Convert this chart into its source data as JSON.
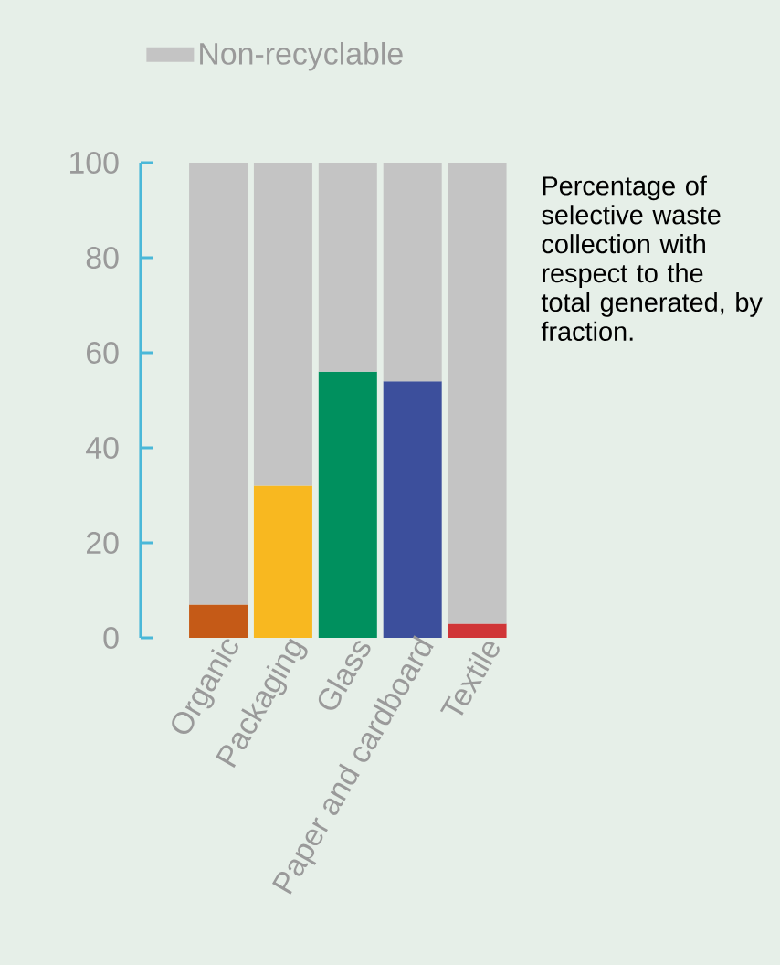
{
  "chart_data": {
    "type": "bar",
    "stacked": true,
    "categories": [
      "Organic",
      "Packaging",
      "Glass",
      "Paper and cardboard",
      "Textile"
    ],
    "series": [
      {
        "colors": [
          "#c55a17",
          "#f8b820",
          "#00905e",
          "#3c4f9c",
          "#d03537"
        ],
        "values": [
          7,
          32,
          56,
          54,
          3
        ]
      },
      {
        "name": "Non-recyclable",
        "color": "#c4c4c4",
        "values": [
          93,
          68,
          44,
          46,
          97
        ]
      }
    ],
    "ylim": [
      0,
      100
    ],
    "yticks": [
      0,
      20,
      40,
      60,
      80,
      100
    ],
    "grid": false,
    "legend": "top left",
    "annotations": [
      "Percentage of selective waste collection with respect to the total generated, by fraction."
    ]
  }
}
